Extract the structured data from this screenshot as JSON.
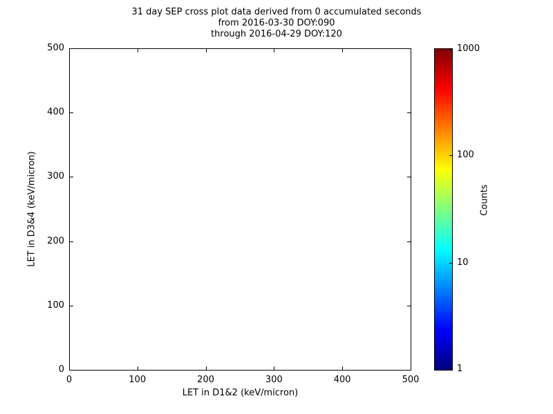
{
  "title": {
    "line1": "31 day SEP cross plot data derived from 0 accumulated seconds",
    "line2": "from 2016-03-30 DOY:090",
    "line3": "through 2016-04-29 DOY:120"
  },
  "chart_data": {
    "type": "heatmap",
    "title": "31 day SEP cross plot data derived from 0 accumulated seconds from 2016-03-30 DOY:090 through 2016-04-29 DOY:120",
    "xlabel": "LET in D1&2 (keV/micron)",
    "ylabel": "LET in D3&4 (keV/micron)",
    "xlim": [
      0,
      500
    ],
    "ylim": [
      0,
      500
    ],
    "x_ticks": [
      0,
      100,
      200,
      300,
      400,
      500
    ],
    "y_ticks": [
      0,
      100,
      200,
      300,
      400,
      500
    ],
    "grid": false,
    "points": [],
    "data_note": "plot area is empty - zero counts plotted",
    "colorbar": {
      "label": "Counts",
      "scale": "log",
      "min": 1,
      "max": 1000,
      "ticks": [
        1,
        10,
        100,
        1000
      ],
      "colormap": "jet",
      "gradient_stops": [
        {
          "pos": 0,
          "color": "#000080"
        },
        {
          "pos": 12.5,
          "color": "#0000ff"
        },
        {
          "pos": 37.5,
          "color": "#00ffff"
        },
        {
          "pos": 62.5,
          "color": "#ffff00"
        },
        {
          "pos": 87.5,
          "color": "#ff0000"
        },
        {
          "pos": 100,
          "color": "#800000"
        }
      ]
    }
  }
}
